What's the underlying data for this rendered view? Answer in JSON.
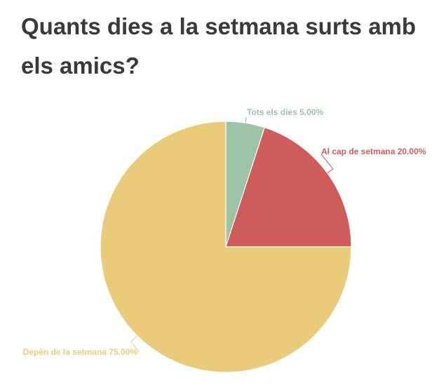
{
  "chart_data": {
    "type": "pie",
    "title": "Quants dies a la setmana surts amb els amics?",
    "slices": [
      {
        "label": "Tots els dies",
        "value": 5.0,
        "display": "Tots els dies 5.00%",
        "color": "#9ac3a8"
      },
      {
        "label": "Al cap de setmana",
        "value": 20.0,
        "display": "Al cap de setmana 20.00%",
        "color": "#cd5c5a"
      },
      {
        "label": "Depèn de la setmana",
        "value": 75.0,
        "display": "Depèn de la setmana 75.00%",
        "color": "#e9cb79"
      }
    ],
    "start_angle": "top",
    "direction": "clockwise"
  }
}
